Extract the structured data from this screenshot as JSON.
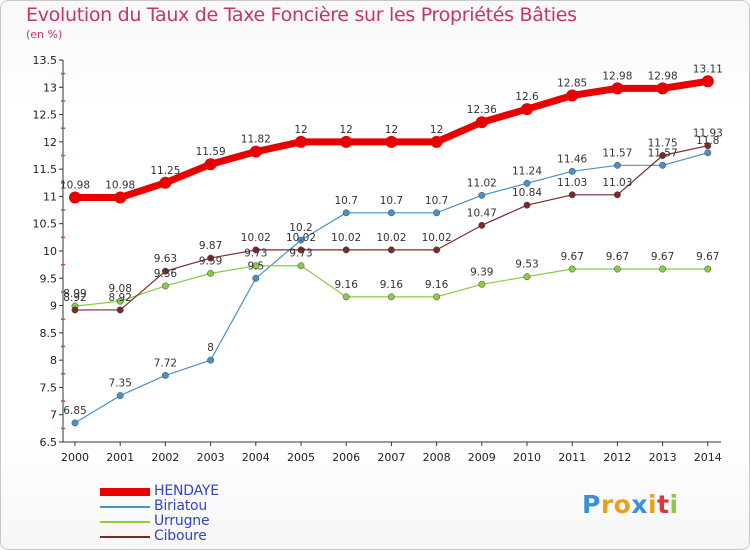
{
  "title": "Evolution du Taux de Taxe Foncière sur les Propriétés Bâties",
  "subtitle": "(en %)",
  "logo": {
    "text": "Proxiti",
    "colors": [
      "#3b8fd8",
      "#e8a020",
      "#e8a020",
      "#3b8fd8",
      "#e8a020",
      "#d83838",
      "#8cc840"
    ]
  },
  "chart_data": {
    "type": "line",
    "x": [
      "2000",
      "2001",
      "2002",
      "2003",
      "2004",
      "2005",
      "2006",
      "2007",
      "2008",
      "2009",
      "2010",
      "2011",
      "2012",
      "2013",
      "2014"
    ],
    "ylim": [
      6.5,
      13.5
    ],
    "yticks": [
      "6.5",
      "7",
      "7.5",
      "8",
      "8.5",
      "9",
      "9.5",
      "10",
      "10.5",
      "11",
      "11.5",
      "12",
      "12.5",
      "13",
      "13.5"
    ],
    "grid": false,
    "legend_position": "bottom-left",
    "series": [
      {
        "name": "HENDAYE",
        "color": "#e80000",
        "values": [
          10.98,
          10.98,
          11.25,
          11.59,
          11.82,
          12,
          12,
          12,
          12,
          12.36,
          12.6,
          12.85,
          12.98,
          12.98,
          13.11
        ],
        "labels": [
          "10.98",
          "10.98",
          "11.25",
          "11.59",
          "11.82",
          "12",
          "12",
          "12",
          "12",
          "12.36",
          "12.6",
          "12.85",
          "12.98",
          "12.98",
          "13.11"
        ]
      },
      {
        "name": "Biriatou",
        "color": "#4a90c8",
        "values": [
          6.85,
          7.35,
          7.72,
          8,
          9.5,
          10.2,
          10.7,
          10.7,
          10.7,
          11.02,
          11.24,
          11.46,
          11.57,
          11.57,
          11.8
        ],
        "labels": [
          "6.85",
          "7.35",
          "7.72",
          "8",
          "9.5",
          "10.2",
          "10.7",
          "10.7",
          "10.7",
          "11.02",
          "11.24",
          "11.46",
          "11.57",
          "11.57",
          "11.8"
        ]
      },
      {
        "name": "Urrugne",
        "color": "#88cc44",
        "values": [
          8.99,
          9.08,
          9.36,
          9.59,
          9.73,
          9.73,
          9.16,
          9.16,
          9.16,
          9.39,
          9.53,
          9.67,
          9.67,
          9.67,
          9.67
        ],
        "labels": [
          "8.99",
          "9.08",
          "9.36",
          "9.59",
          "9.73",
          "9.73",
          "9.16",
          "9.16",
          "9.16",
          "9.39",
          "9.53",
          "9.67",
          "9.67",
          "9.67",
          "9.67"
        ]
      },
      {
        "name": "Ciboure",
        "color": "#7a2a2a",
        "values": [
          8.92,
          8.92,
          9.63,
          9.87,
          10.02,
          10.02,
          10.02,
          10.02,
          10.02,
          10.47,
          10.84,
          11.03,
          11.03,
          11.75,
          11.93
        ],
        "labels": [
          "8.92",
          "8.92",
          "9.63",
          "9.87",
          "10.02",
          "10.02",
          "10.02",
          "10.02",
          "10.02",
          "10.47",
          "10.84",
          "11.03",
          "11.03",
          "11.75",
          "11.93"
        ]
      }
    ]
  }
}
